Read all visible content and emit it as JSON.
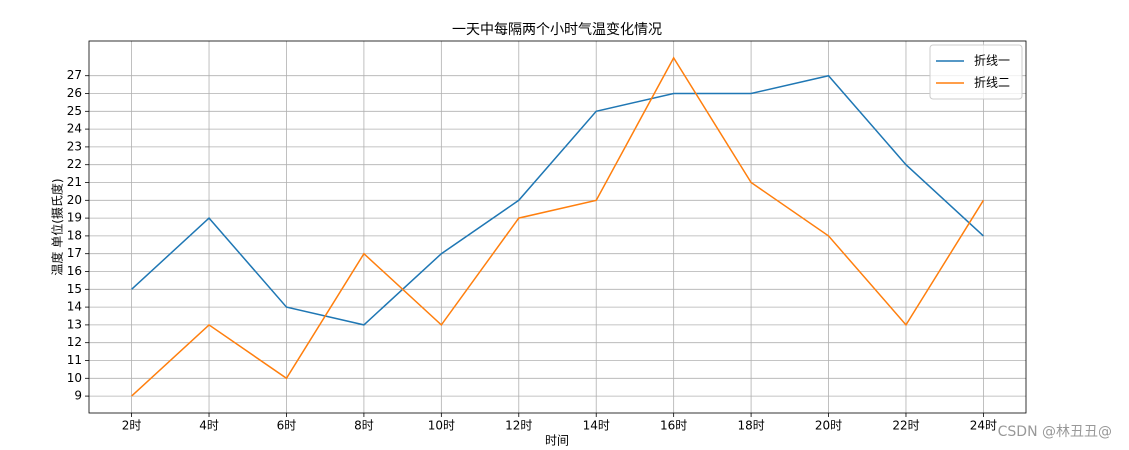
{
  "chart_data": {
    "type": "line",
    "title": "一天中每隔两个小时气温变化情况",
    "x_label": "时间",
    "y_label": "温度 单位(摄氏度)",
    "categories": [
      "2时",
      "4时",
      "6时",
      "8时",
      "10时",
      "12时",
      "14时",
      "16时",
      "18时",
      "20时",
      "22时",
      "24时"
    ],
    "series": [
      {
        "name": "折线一",
        "color": "#1f77b4",
        "values": [
          15,
          19,
          14,
          13,
          17,
          20,
          25,
          26,
          26,
          27,
          22,
          18
        ]
      },
      {
        "name": "折线二",
        "color": "#ff7f0e",
        "values": [
          9,
          13,
          10,
          17,
          13,
          19,
          20,
          28,
          21,
          18,
          13,
          20
        ]
      }
    ],
    "ylim": [
      8.05,
      28.95
    ],
    "yticks": [
      9,
      10,
      11,
      12,
      13,
      14,
      15,
      16,
      17,
      18,
      19,
      20,
      21,
      22,
      23,
      24,
      25,
      26,
      27
    ],
    "grid": true,
    "legend": "upper right",
    "watermark": "CSDN @林丑丑@"
  }
}
